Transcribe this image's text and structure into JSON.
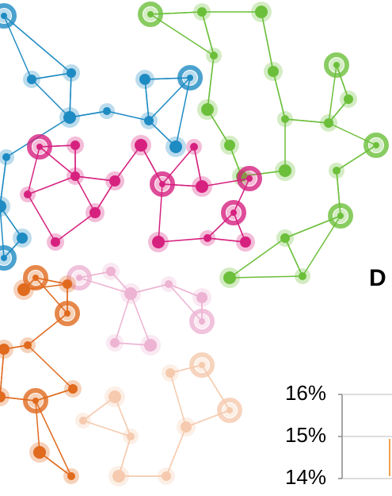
{
  "chart_data": {
    "type": "line",
    "title": "D",
    "ylim": [
      14,
      16
    ],
    "yticks": [
      {
        "value": 14,
        "label": "14%"
      },
      {
        "value": 15,
        "label": "15%"
      },
      {
        "value": 16,
        "label": "16%"
      }
    ],
    "grid": true
  }
}
